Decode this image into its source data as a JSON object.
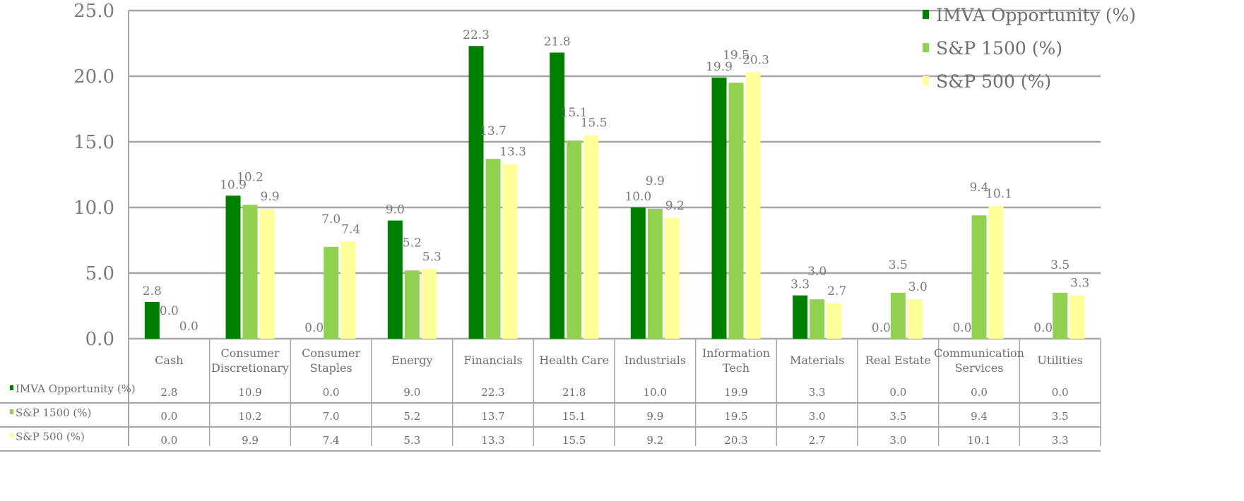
{
  "chart_data": {
    "type": "bar",
    "categories": [
      [
        "Cash"
      ],
      [
        "Consumer",
        "Discretionary"
      ],
      [
        "Consumer",
        "Staples"
      ],
      [
        "Energy"
      ],
      [
        "Financials"
      ],
      [
        "Health Care"
      ],
      [
        "Industrials"
      ],
      [
        "Information",
        "Tech"
      ],
      [
        "Materials"
      ],
      [
        "Real Estate"
      ],
      [
        "Communication",
        "Services"
      ],
      [
        "Utilities"
      ]
    ],
    "series": [
      {
        "name": "IMVA Opportunity (%)",
        "color": "#008000",
        "values": [
          2.8,
          10.9,
          0.0,
          9.0,
          22.3,
          21.8,
          10.0,
          19.9,
          3.3,
          0.0,
          0.0,
          0.0
        ],
        "labels": [
          "2.8",
          "10.9",
          "0.0",
          "9.0",
          "22.3",
          "21.8",
          "10.0",
          "19.9",
          "3.3",
          "0.0",
          "0.0",
          "0.0"
        ]
      },
      {
        "name": "S&P 1500 (%)",
        "color": "#92D050",
        "values": [
          0.0,
          10.2,
          7.0,
          5.2,
          13.7,
          15.1,
          9.9,
          19.5,
          3.0,
          3.5,
          9.4,
          3.5
        ],
        "labels": [
          "0.0",
          "10.2",
          "7.0",
          "5.2",
          "13.7",
          "15.1",
          "9.9",
          "19.5",
          "3.0",
          "3.5",
          "9.4",
          "3.5"
        ]
      },
      {
        "name": "S&P 500 (%)",
        "color": "#FFFF99",
        "values": [
          0.0,
          9.9,
          7.4,
          5.3,
          13.3,
          15.5,
          9.2,
          20.3,
          2.7,
          3.0,
          10.1,
          3.3
        ],
        "labels": [
          "0.0",
          "9.9",
          "7.4",
          "5.3",
          "13.3",
          "15.5",
          "9.2",
          "20.3",
          "2.7",
          "3.0",
          "10.1",
          "3.3"
        ]
      }
    ],
    "ylim": [
      0,
      25
    ],
    "yticks": [
      "0.0",
      "5.0",
      "10.0",
      "15.0",
      "20.0",
      "25.0"
    ],
    "grid": true,
    "legend_position": "top-right",
    "data_table": true
  }
}
